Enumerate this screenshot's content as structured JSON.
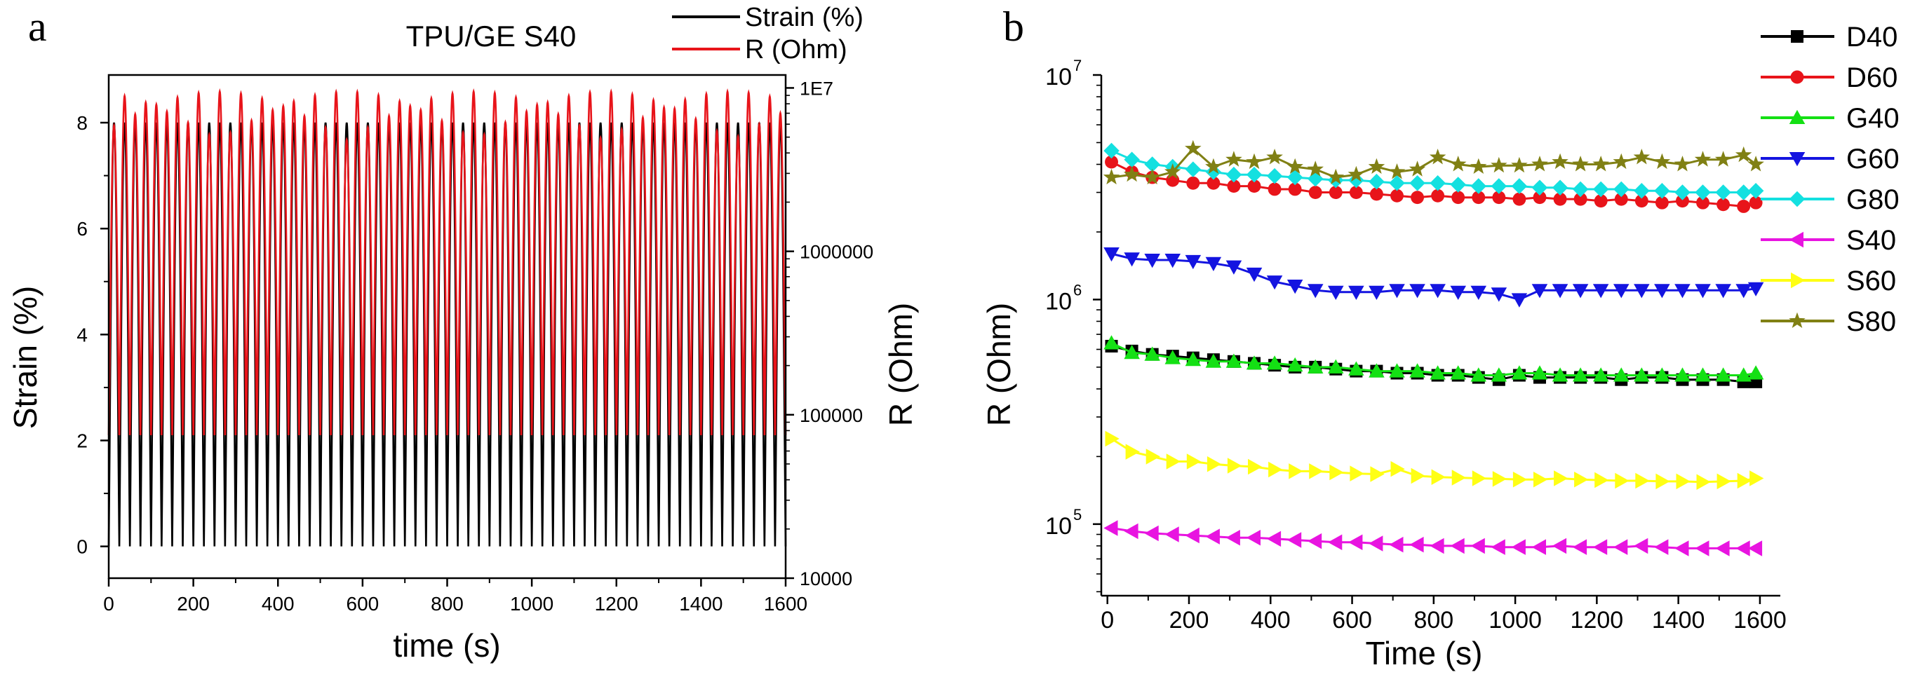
{
  "figure": {
    "panel_a_letter": "a",
    "panel_b_letter": "b"
  },
  "chart_data": [
    {
      "panel": "a",
      "type": "line",
      "title": "TPU/GE S40",
      "xlabel": "time (s)",
      "ylabel": "Strain (%)",
      "y2label": "R (Ohm)",
      "xlim": [
        0,
        1600
      ],
      "ylim": [
        -0.6,
        8.9
      ],
      "y2lim": [
        10000,
        12000000
      ],
      "y2scale": "log",
      "x_ticks": [
        0,
        200,
        400,
        600,
        800,
        1000,
        1200,
        1400,
        1600
      ],
      "y_ticks": [
        0,
        2,
        4,
        6,
        8
      ],
      "y2_ticks": [
        {
          "value": 10000,
          "label": "10000"
        },
        {
          "value": 100000,
          "label": "100000"
        },
        {
          "value": 1000000,
          "label": "1000000"
        },
        {
          "value": 10000000,
          "label": "1E7"
        }
      ],
      "legend_position": "top-right",
      "cycles": 64,
      "period_s": 25,
      "series": [
        {
          "name": "Strain (%)",
          "color": "#000000",
          "axis": "left",
          "min": 0,
          "max": 8
        },
        {
          "name": "R (Ohm)",
          "color": "#e8141a",
          "axis": "right",
          "min_ohm": 75000,
          "max_ohm": 9500000
        }
      ]
    },
    {
      "panel": "b",
      "type": "scatter",
      "title": "",
      "xlabel": "Time (s)",
      "ylabel": "R (Ohm)",
      "xlim": [
        -15,
        1650
      ],
      "ylim": [
        48000,
        10000000
      ],
      "yscale": "log",
      "x_ticks": [
        0,
        200,
        400,
        600,
        800,
        1000,
        1200,
        1400,
        1600
      ],
      "y_ticks": [
        {
          "value": 100000,
          "base": "10",
          "exp": "5"
        },
        {
          "value": 1000000,
          "base": "10",
          "exp": "6"
        },
        {
          "value": 10000000,
          "base": "10",
          "exp": "7"
        }
      ],
      "legend_position": "top-right",
      "x": [
        10,
        60,
        110,
        160,
        210,
        260,
        310,
        360,
        410,
        460,
        510,
        560,
        610,
        660,
        710,
        760,
        810,
        860,
        910,
        960,
        1010,
        1060,
        1110,
        1160,
        1210,
        1260,
        1310,
        1360,
        1410,
        1460,
        1510,
        1560,
        1590
      ],
      "series": [
        {
          "name": "D40",
          "color": "#000000",
          "marker": "square",
          "values": [
            620000,
            590000,
            570000,
            560000,
            550000,
            540000,
            530000,
            520000,
            510000,
            500000,
            500000,
            490000,
            480000,
            480000,
            470000,
            470000,
            460000,
            460000,
            450000,
            440000,
            460000,
            450000,
            450000,
            450000,
            450000,
            440000,
            450000,
            450000,
            440000,
            440000,
            440000,
            430000,
            430000
          ]
        },
        {
          "name": "D60",
          "color": "#e8141a",
          "marker": "circle",
          "values": [
            4100000,
            3700000,
            3500000,
            3400000,
            3300000,
            3300000,
            3200000,
            3200000,
            3100000,
            3100000,
            3000000,
            3000000,
            3000000,
            2950000,
            2900000,
            2850000,
            2900000,
            2850000,
            2850000,
            2850000,
            2800000,
            2850000,
            2800000,
            2800000,
            2750000,
            2800000,
            2750000,
            2700000,
            2750000,
            2700000,
            2650000,
            2600000,
            2700000
          ]
        },
        {
          "name": "G40",
          "color": "#14e014",
          "marker": "triangle-up",
          "values": [
            640000,
            580000,
            570000,
            550000,
            540000,
            530000,
            530000,
            520000,
            520000,
            510000,
            500000,
            500000,
            490000,
            480000,
            480000,
            480000,
            470000,
            470000,
            460000,
            460000,
            470000,
            470000,
            460000,
            460000,
            460000,
            460000,
            460000,
            460000,
            460000,
            460000,
            460000,
            460000,
            470000
          ]
        },
        {
          "name": "G60",
          "color": "#1414e0",
          "marker": "triangle-down",
          "values": [
            1600000,
            1520000,
            1500000,
            1500000,
            1480000,
            1450000,
            1400000,
            1300000,
            1200000,
            1150000,
            1100000,
            1080000,
            1080000,
            1080000,
            1100000,
            1100000,
            1100000,
            1080000,
            1080000,
            1060000,
            1000000,
            1100000,
            1100000,
            1100000,
            1100000,
            1100000,
            1100000,
            1100000,
            1100000,
            1100000,
            1100000,
            1100000,
            1120000
          ]
        },
        {
          "name": "G80",
          "color": "#14e0e0",
          "marker": "diamond",
          "values": [
            4600000,
            4200000,
            4000000,
            3900000,
            3800000,
            3700000,
            3600000,
            3600000,
            3550000,
            3500000,
            3450000,
            3400000,
            3400000,
            3350000,
            3300000,
            3300000,
            3300000,
            3250000,
            3200000,
            3200000,
            3200000,
            3150000,
            3150000,
            3100000,
            3100000,
            3100000,
            3050000,
            3050000,
            3000000,
            3000000,
            3000000,
            3000000,
            3050000
          ]
        },
        {
          "name": "S40",
          "color": "#e814e0",
          "marker": "triangle-left",
          "values": [
            96000,
            93000,
            91000,
            90000,
            89000,
            88000,
            87000,
            87000,
            86000,
            85000,
            84000,
            83000,
            83000,
            82000,
            81000,
            81000,
            80000,
            80000,
            80000,
            79000,
            79000,
            79000,
            80000,
            79000,
            79000,
            79000,
            80000,
            79000,
            78000,
            78000,
            78000,
            78000,
            78000
          ]
        },
        {
          "name": "S60",
          "color": "#ffff14",
          "marker": "triangle-right",
          "values": [
            240000,
            210000,
            200000,
            190000,
            190000,
            185000,
            182000,
            180000,
            175000,
            172000,
            172000,
            170000,
            168000,
            167000,
            176000,
            164000,
            162000,
            161000,
            160000,
            159000,
            158000,
            158000,
            160000,
            158000,
            157000,
            156000,
            156000,
            155000,
            155000,
            154000,
            155000,
            156000,
            160000
          ]
        },
        {
          "name": "S80",
          "color": "#808014",
          "marker": "star",
          "values": [
            3500000,
            3600000,
            3500000,
            3700000,
            4700000,
            3900000,
            4200000,
            4100000,
            4300000,
            3900000,
            3800000,
            3500000,
            3600000,
            3900000,
            3700000,
            3800000,
            4300000,
            4000000,
            3900000,
            3950000,
            3950000,
            4000000,
            4100000,
            4000000,
            4000000,
            4100000,
            4300000,
            4100000,
            4000000,
            4200000,
            4200000,
            4400000,
            4000000
          ]
        }
      ]
    }
  ]
}
